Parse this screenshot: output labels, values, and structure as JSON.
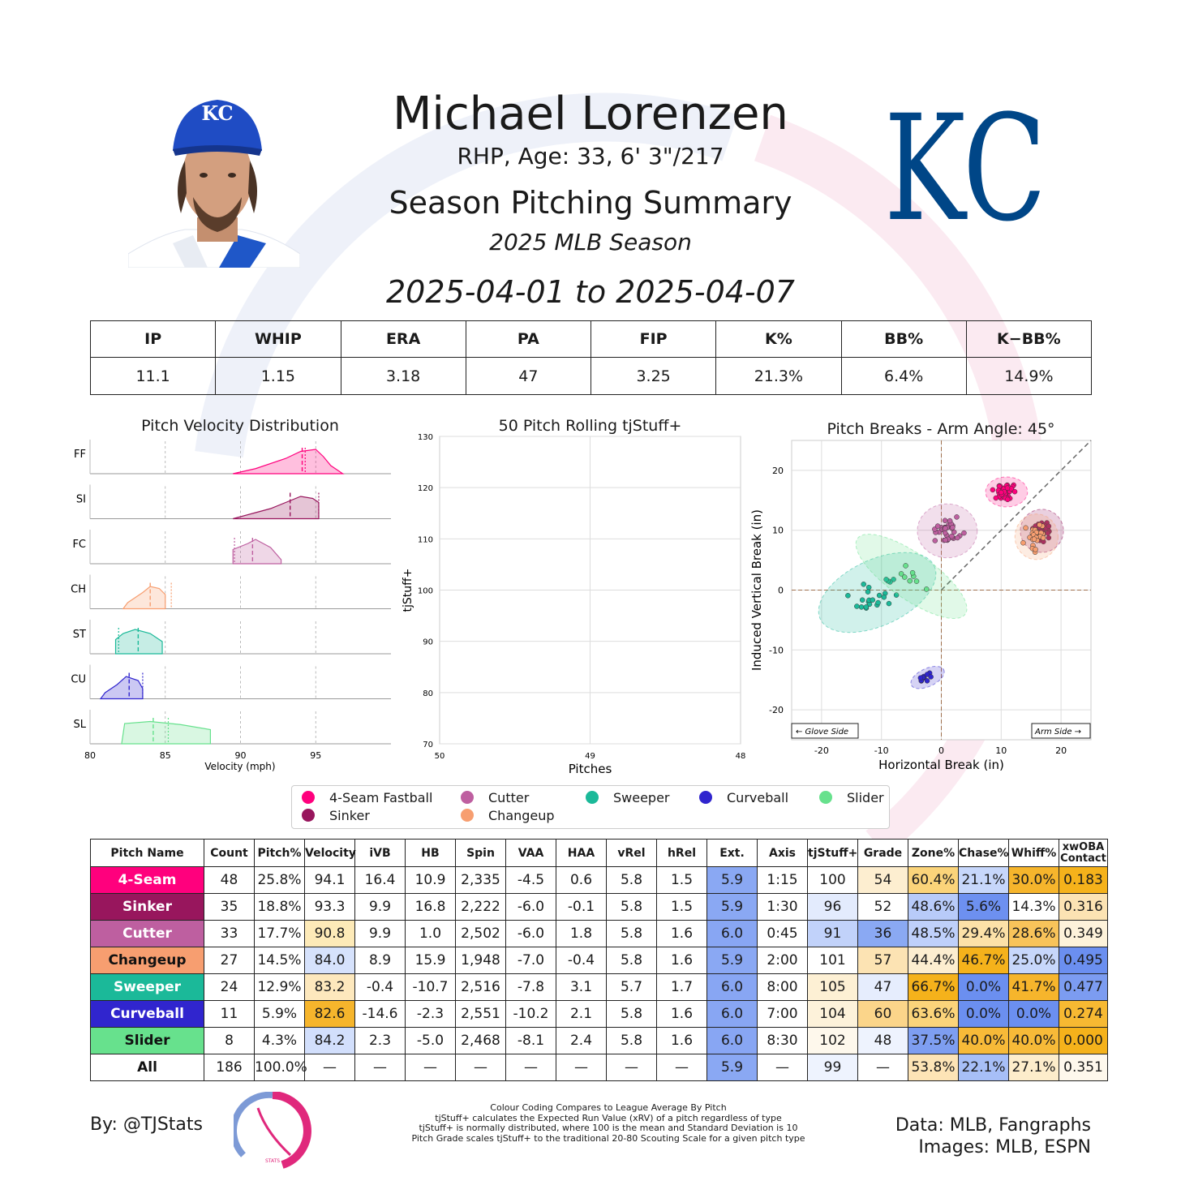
{
  "header": {
    "name": "Michael Lorenzen",
    "bio": "RHP, Age: 33, 6' 3\"/217",
    "title": "Season Pitching Summary",
    "season": "2025 MLB Season",
    "dates": "2025-04-01 to 2025-04-07",
    "team_logo": "KC"
  },
  "colors": {
    "ff": "#ff007d",
    "si": "#98165d",
    "fc": "#be5fa0",
    "ch": "#f79e70",
    "st": "#1bb999",
    "cu": "#3025ce",
    "sl": "#67e18d",
    "good": "#6b8ff0",
    "bad": "#f5b21b"
  },
  "season_stats": {
    "headers": [
      "IP",
      "WHIP",
      "ERA",
      "PA",
      "FIP",
      "K%",
      "BB%",
      "K−BB%"
    ],
    "values": [
      "11.1",
      "1.15",
      "3.18",
      "47",
      "3.25",
      "21.3%",
      "6.4%",
      "14.9%"
    ]
  },
  "velocity_chart": {
    "title": "Pitch Velocity Distribution",
    "xlabel": "Velocity (mph)",
    "xticks": [
      "80",
      "85",
      "90",
      "95"
    ],
    "rows": [
      "FF",
      "SI",
      "FC",
      "CH",
      "ST",
      "CU",
      "SL"
    ]
  },
  "rolling_chart": {
    "title": "50 Pitch Rolling tjStuff+",
    "xlabel": "Pitches",
    "ylabel": "tjStuff+",
    "yticks": [
      "130",
      "120",
      "110",
      "100",
      "90",
      "80",
      "70"
    ],
    "xticks": [
      "50",
      "49",
      "48"
    ]
  },
  "chart_data": {
    "type": "scatter",
    "title": "Pitch Breaks - Arm Angle: 45°",
    "xlabel": "Horizontal Break (in)",
    "ylabel": "Induced Vertical Break (in)",
    "xlim": [
      -25,
      25
    ],
    "ylim": [
      -25,
      25
    ],
    "xticks": [
      "-20",
      "-10",
      "0",
      "10",
      "20"
    ],
    "yticks": [
      "20",
      "10",
      "0",
      "-10",
      "-20"
    ],
    "glove_label": "← Glove Side",
    "arm_label": "Arm Side →",
    "series": [
      {
        "name": "4-Seam Fastball",
        "code": "ff",
        "center": [
          10.9,
          16.4
        ],
        "spread": [
          3.5,
          2.5
        ],
        "n": 48
      },
      {
        "name": "Sinker",
        "code": "si",
        "center": [
          16.8,
          9.9
        ],
        "spread": [
          3.6,
          3.6
        ],
        "n": 35
      },
      {
        "name": "Cutter",
        "code": "fc",
        "center": [
          1.0,
          9.9
        ],
        "spread": [
          5.0,
          4.5
        ],
        "n": 33
      },
      {
        "name": "Changeup",
        "code": "ch",
        "center": [
          15.9,
          8.9
        ],
        "spread": [
          3.6,
          3.8
        ],
        "n": 27
      },
      {
        "name": "Sweeper",
        "code": "st",
        "center": [
          -10.7,
          -0.4
        ],
        "spread": [
          10.5,
          5.5
        ],
        "n": 24
      },
      {
        "name": "Curveball",
        "code": "cu",
        "center": [
          -2.3,
          -14.6
        ],
        "spread": [
          3.0,
          1.5
        ],
        "n": 11
      },
      {
        "name": "Slider",
        "code": "sl",
        "center": [
          -5.0,
          2.3
        ],
        "spread": [
          3.8,
          11.0
        ],
        "n": 8
      }
    ]
  },
  "legend": [
    {
      "label": "4-Seam Fastball",
      "code": "ff"
    },
    {
      "label": "Cutter",
      "code": "fc"
    },
    {
      "label": "Sweeper",
      "code": "st"
    },
    {
      "label": "Curveball",
      "code": "cu"
    },
    {
      "label": "Slider",
      "code": "sl"
    },
    {
      "label": "Sinker",
      "code": "si"
    },
    {
      "label": "Changeup",
      "code": "ch"
    }
  ],
  "pitch_table": {
    "headers": [
      "Pitch Name",
      "Count",
      "Pitch%",
      "Velocity",
      "iVB",
      "HB",
      "Spin",
      "VAA",
      "HAA",
      "vRel",
      "hRel",
      "Ext.",
      "Axis",
      "tjStuff+",
      "Grade",
      "Zone%",
      "Chase%",
      "Whiff%",
      "xwOBA Contact"
    ],
    "rows": [
      {
        "code": "ff",
        "cells": [
          "4-Seam",
          "48",
          "25.8%",
          "94.1",
          "16.4",
          "10.9",
          "2,335",
          "-4.5",
          "0.6",
          "5.8",
          "1.5",
          "5.9",
          "1:15",
          "100",
          "54",
          "60.4%",
          "21.1%",
          "30.0%",
          "0.183"
        ],
        "shade": [
          "",
          "",
          "",
          "",
          "",
          "",
          "",
          "",
          "",
          "",
          "",
          "#8aa8f3",
          "",
          "",
          "#fdeed0",
          "#fbd47a",
          "#c7d7fb",
          "#f6b52c",
          "#f5b21b"
        ]
      },
      {
        "code": "si",
        "cells": [
          "Sinker",
          "35",
          "18.8%",
          "93.3",
          "9.9",
          "16.8",
          "2,222",
          "-6.0",
          "-0.1",
          "5.8",
          "1.5",
          "5.9",
          "1:30",
          "96",
          "52",
          "48.6%",
          "5.6%",
          "14.3%",
          "0.316"
        ],
        "shade": [
          "",
          "",
          "",
          "",
          "",
          "",
          "",
          "",
          "",
          "",
          "",
          "#8aa8f3",
          "",
          "#e3ebfd",
          "",
          "#b8cbf9",
          "#6d90f0",
          "",
          "#fce3b3"
        ]
      },
      {
        "code": "fc",
        "cells": [
          "Cutter",
          "33",
          "17.7%",
          "90.8",
          "9.9",
          "1.0",
          "2,502",
          "-6.0",
          "1.8",
          "5.8",
          "1.6",
          "6.0",
          "0:45",
          "91",
          "36",
          "48.5%",
          "29.4%",
          "28.6%",
          "0.349"
        ],
        "shade": [
          "",
          "",
          "",
          "#fdeab8",
          "",
          "",
          "",
          "",
          "",
          "",
          "",
          "#88a6f3",
          "",
          "#c1d2fa",
          "#8aa9f3",
          "#bfd0fa",
          "#fce1a8",
          "#f8c35a",
          "#fdf2da"
        ]
      },
      {
        "code": "ch",
        "cells": [
          "Changeup",
          "27",
          "14.5%",
          "84.0",
          "8.9",
          "15.9",
          "1,948",
          "-7.0",
          "-0.4",
          "5.8",
          "1.6",
          "5.9",
          "2:00",
          "101",
          "57",
          "44.4%",
          "46.7%",
          "25.0%",
          "0.495"
        ],
        "shade": [
          "",
          "",
          "",
          "#d6e2fc",
          "",
          "",
          "",
          "",
          "",
          "",
          "",
          "#8aa8f3",
          "",
          "",
          "#fce3b3",
          "#fdeed0",
          "#f5b21b",
          "#c7d7fb",
          "#6b8ff0"
        ]
      },
      {
        "code": "st",
        "cells": [
          "Sweeper",
          "24",
          "12.9%",
          "83.2",
          "-0.4",
          "-10.7",
          "2,516",
          "-7.8",
          "3.1",
          "5.7",
          "1.7",
          "6.0",
          "8:00",
          "105",
          "47",
          "66.7%",
          "0.0%",
          "41.7%",
          "0.477"
        ],
        "shade": [
          "",
          "",
          "",
          "#fde8bd",
          "",
          "",
          "",
          "",
          "",
          "",
          "",
          "#88a6f3",
          "",
          "#fdf0d4",
          "#e6edfd",
          "#f5b21b",
          "#6b8ff0",
          "#f6b52c",
          "#7c9cf1"
        ]
      },
      {
        "code": "cu",
        "cells": [
          "Curveball",
          "11",
          "5.9%",
          "82.6",
          "-14.6",
          "-2.3",
          "2,551",
          "-10.2",
          "2.1",
          "5.8",
          "1.6",
          "6.0",
          "7:00",
          "104",
          "60",
          "63.6%",
          "0.0%",
          "0.0%",
          "0.274"
        ],
        "shade": [
          "",
          "",
          "",
          "#f6b52c",
          "",
          "",
          "",
          "",
          "",
          "",
          "",
          "#88a6f3",
          "",
          "#fdf2da",
          "#fbd58a",
          "#fbd47a",
          "#6b8ff0",
          "#6b8ff0",
          "#f7b932"
        ]
      },
      {
        "code": "sl",
        "cells": [
          "Slider",
          "8",
          "4.3%",
          "84.2",
          "2.3",
          "-5.0",
          "2,468",
          "-8.1",
          "2.4",
          "5.8",
          "1.6",
          "6.0",
          "8:30",
          "102",
          "48",
          "37.5%",
          "40.0%",
          "40.0%",
          "0.000"
        ],
        "shade": [
          "",
          "",
          "",
          "#d2dffc",
          "",
          "",
          "",
          "",
          "",
          "",
          "",
          "#88a6f3",
          "",
          "#fef8ec",
          "#eef3fe",
          "#7e9ef1",
          "#f7ba38",
          "#f7ba38",
          "#f5b21b"
        ]
      },
      {
        "code": "all",
        "cells": [
          "All",
          "186",
          "100.0%",
          "—",
          "—",
          "—",
          "—",
          "—",
          "—",
          "—",
          "—",
          "5.9",
          "—",
          "99",
          "—",
          "53.8%",
          "22.1%",
          "27.1%",
          "0.351"
        ],
        "shade": [
          "",
          "",
          "",
          "",
          "",
          "",
          "",
          "",
          "",
          "",
          "",
          "#8aa8f3",
          "",
          "#eef3fe",
          "",
          "#fde4b6",
          "#a7bff7",
          "#fdedcb",
          "#fef8ec"
        ]
      }
    ]
  },
  "footer": {
    "by": "By: @TJStats",
    "note": [
      "Colour Coding Compares to League Average By Pitch",
      "tjStuff+ calculates the Expected Run Value (xRV) of a pitch regardless of type",
      "tjStuff+ is normally distributed, where 100 is the mean and Standard Deviation is 10",
      "Pitch Grade scales tjStuff+ to the traditional 20-80 Scouting Scale for a given pitch type"
    ],
    "data_source": "Data: MLB, Fangraphs",
    "image_source": "Images: MLB, ESPN",
    "logo_text": "STATS"
  }
}
